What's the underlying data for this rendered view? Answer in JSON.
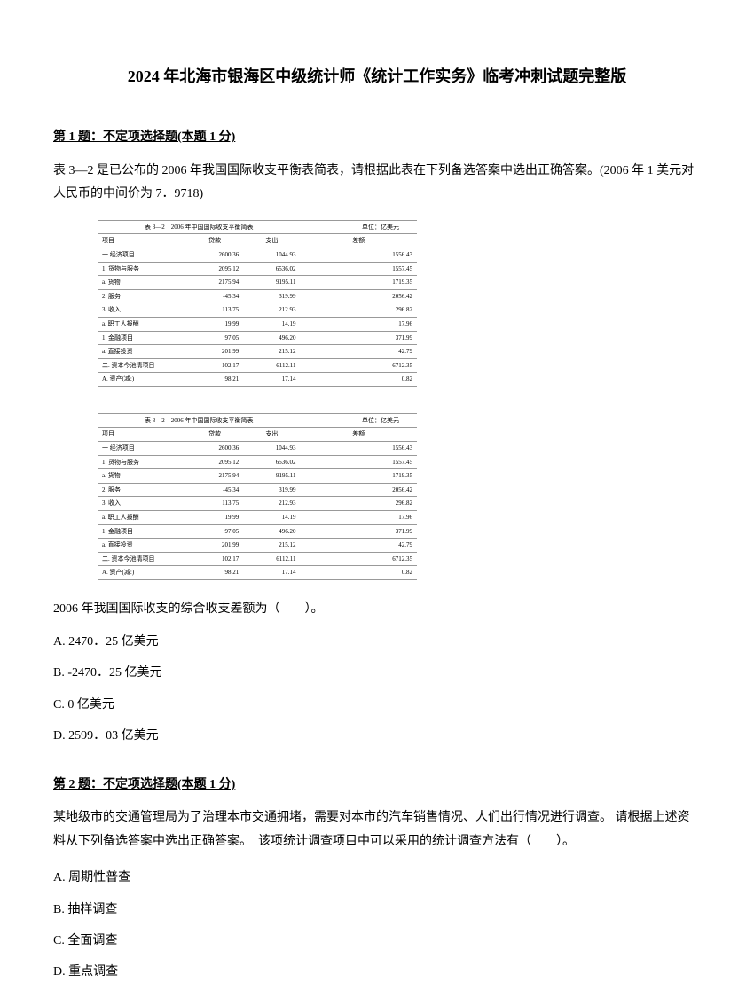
{
  "title": "2024 年北海市银海区中级统计师《统计工作实务》临考冲刺试题完整版",
  "q1": {
    "header_prefix": "第 1 题：",
    "header_type": "不定项选择题(本题 1 分)",
    "text": "表 3—2 是已公布的 2006 年我国国际收支平衡表简表，请根据此表在下列备选答案中选出正确答案。(2006 年 1 美元对人民币的中间价为 7．9718)",
    "table_title": "表 3—2　2006 年中国国际收支平衡简表",
    "table_unit": "单位：亿美元",
    "headers": [
      "项目",
      "贷款",
      "支出",
      "差额"
    ],
    "rows": [
      [
        "一 经济项目",
        "2600.36",
        "1044.93",
        "1556.43"
      ],
      [
        "1. 货物与服务",
        "2095.12",
        "6536.02",
        "1557.45"
      ],
      [
        "a. 货物",
        "2175.94",
        "9195.11",
        "1719.35"
      ],
      [
        "2. 服务",
        "-45.34",
        "319.99",
        "2056.42"
      ],
      [
        "3. 收入",
        "113.75",
        "212.93",
        "296.82"
      ],
      [
        "a. 职工人报酬",
        "19.99",
        "14.19",
        "17.96"
      ],
      [
        "1. 金融项目",
        "97.05",
        "496.20",
        "371.99"
      ],
      [
        "a. 直接投资",
        "201.99",
        "215.12",
        "42.79"
      ],
      [
        "二. 资本今池清项目",
        "102.17",
        "6112.11",
        "6712.35"
      ],
      [
        "A. 资产(减:)",
        "98.21",
        "17.14",
        "0.82"
      ]
    ],
    "sub_question": "2006 年我国国际收支的综合收支差额为（　　）。",
    "options": {
      "a": "A. 2470．25 亿美元",
      "b": "B. -2470．25 亿美元",
      "c": "C. 0 亿美元",
      "d": "D. 2599．03 亿美元"
    }
  },
  "q2": {
    "header_prefix": "第 2 题：",
    "header_type": "不定项选择题(本题 1 分)",
    "text": "某地级市的交通管理局为了治理本市交通拥堵，需要对本市的汽车销售情况、人们出行情况进行调查。 请根据上述资料从下列备选答案中选出正确答案。　该项统计调查项目中可以采用的统计调查方法有（　　）。",
    "options": {
      "a": "A. 周期性普查",
      "b": "B. 抽样调查",
      "c": "C. 全面调查",
      "d": "D. 重点调查"
    }
  }
}
